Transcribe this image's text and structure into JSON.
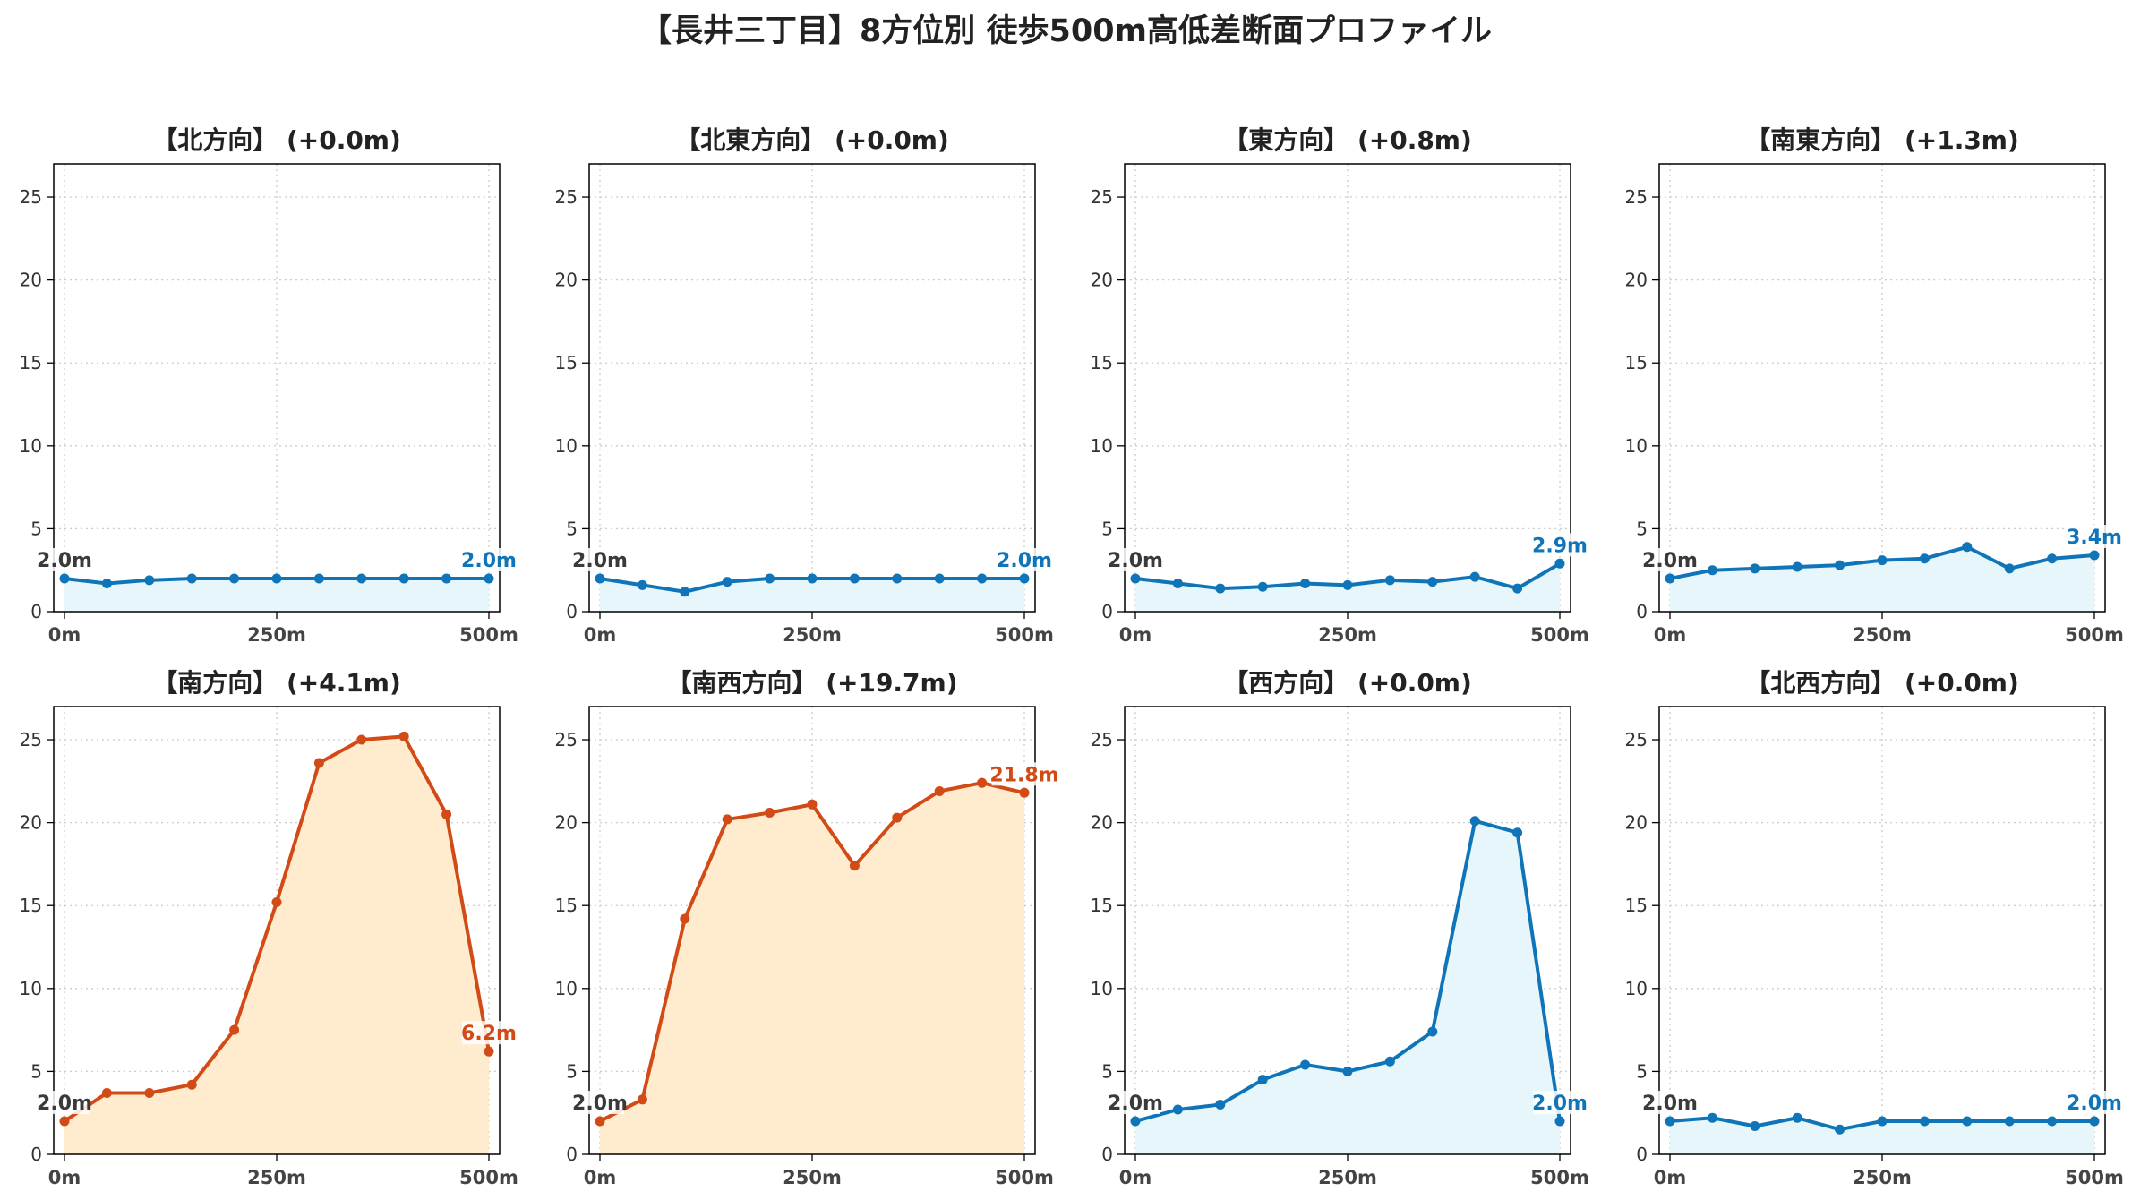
{
  "title": "【長井三丁目】8方位別 徒歩500m高低差断面プロファイル",
  "colors": {
    "low_line": "#0f75b8",
    "low_fill": "#e6f6fb",
    "high_line": "#d24a16",
    "high_fill": "#ffeccf",
    "start_label": "#3a3a3a",
    "grid": "#cccccc"
  },
  "chart_data": [
    {
      "type": "line",
      "title": "【北方向】 (+0.0m)",
      "x": [
        0,
        50,
        100,
        150,
        200,
        250,
        300,
        350,
        400,
        450,
        500
      ],
      "values": [
        2.0,
        1.7,
        1.9,
        2.0,
        2.0,
        2.0,
        2.0,
        2.0,
        2.0,
        2.0,
        2.0
      ],
      "start_label": "2.0m",
      "end_label": "2.0m",
      "highlight": false,
      "ylim": [
        0,
        27
      ],
      "yticks": [
        "0",
        "5",
        "10",
        "15",
        "20",
        "25"
      ],
      "xticks": [
        "0m",
        "250m",
        "500m"
      ],
      "grid": true
    },
    {
      "type": "line",
      "title": "【北東方向】 (+0.0m)",
      "x": [
        0,
        50,
        100,
        150,
        200,
        250,
        300,
        350,
        400,
        450,
        500
      ],
      "values": [
        2.0,
        1.6,
        1.2,
        1.8,
        2.0,
        2.0,
        2.0,
        2.0,
        2.0,
        2.0,
        2.0
      ],
      "start_label": "2.0m",
      "end_label": "2.0m",
      "highlight": false,
      "ylim": [
        0,
        27
      ],
      "yticks": [
        "0",
        "5",
        "10",
        "15",
        "20",
        "25"
      ],
      "xticks": [
        "0m",
        "250m",
        "500m"
      ],
      "grid": true
    },
    {
      "type": "line",
      "title": "【東方向】 (+0.8m)",
      "x": [
        0,
        50,
        100,
        150,
        200,
        250,
        300,
        350,
        400,
        450,
        500
      ],
      "values": [
        2.0,
        1.7,
        1.4,
        1.5,
        1.7,
        1.6,
        1.9,
        1.8,
        2.1,
        1.4,
        2.9
      ],
      "start_label": "2.0m",
      "end_label": "2.9m",
      "highlight": false,
      "ylim": [
        0,
        27
      ],
      "yticks": [
        "0",
        "5",
        "10",
        "15",
        "20",
        "25"
      ],
      "xticks": [
        "0m",
        "250m",
        "500m"
      ],
      "grid": true
    },
    {
      "type": "line",
      "title": "【南東方向】 (+1.3m)",
      "x": [
        0,
        50,
        100,
        150,
        200,
        250,
        300,
        350,
        400,
        450,
        500
      ],
      "values": [
        2.0,
        2.5,
        2.6,
        2.7,
        2.8,
        3.1,
        3.2,
        3.9,
        2.6,
        3.2,
        3.4
      ],
      "start_label": "2.0m",
      "end_label": "3.4m",
      "highlight": false,
      "ylim": [
        0,
        27
      ],
      "yticks": [
        "0",
        "5",
        "10",
        "15",
        "20",
        "25"
      ],
      "xticks": [
        "0m",
        "250m",
        "500m"
      ],
      "grid": true
    },
    {
      "type": "line",
      "title": "【南方向】 (+4.1m)",
      "x": [
        0,
        50,
        100,
        150,
        200,
        250,
        300,
        350,
        400,
        450,
        500
      ],
      "values": [
        2.0,
        3.7,
        3.7,
        4.2,
        7.5,
        15.2,
        23.6,
        25.0,
        25.2,
        20.5,
        6.2
      ],
      "start_label": "2.0m",
      "end_label": "6.2m",
      "highlight": true,
      "ylim": [
        0,
        27
      ],
      "yticks": [
        "0",
        "5",
        "10",
        "15",
        "20",
        "25"
      ],
      "xticks": [
        "0m",
        "250m",
        "500m"
      ],
      "grid": true
    },
    {
      "type": "line",
      "title": "【南西方向】 (+19.7m)",
      "x": [
        0,
        50,
        100,
        150,
        200,
        250,
        300,
        350,
        400,
        450,
        500
      ],
      "values": [
        2.0,
        3.3,
        14.2,
        20.2,
        20.6,
        21.1,
        17.4,
        20.3,
        21.9,
        22.4,
        21.8
      ],
      "start_label": "2.0m",
      "end_label": "21.8m",
      "highlight": true,
      "ylim": [
        0,
        27
      ],
      "yticks": [
        "0",
        "5",
        "10",
        "15",
        "20",
        "25"
      ],
      "xticks": [
        "0m",
        "250m",
        "500m"
      ],
      "grid": true
    },
    {
      "type": "line",
      "title": "【西方向】 (+0.0m)",
      "x": [
        0,
        50,
        100,
        150,
        200,
        250,
        300,
        350,
        400,
        450,
        500
      ],
      "values": [
        2.0,
        2.7,
        3.0,
        4.5,
        5.4,
        5.0,
        5.6,
        7.4,
        20.1,
        19.4,
        2.0
      ],
      "start_label": "2.0m",
      "end_label": "2.0m",
      "highlight": false,
      "ylim": [
        0,
        27
      ],
      "yticks": [
        "0",
        "5",
        "10",
        "15",
        "20",
        "25"
      ],
      "xticks": [
        "0m",
        "250m",
        "500m"
      ],
      "grid": true
    },
    {
      "type": "line",
      "title": "【北西方向】 (+0.0m)",
      "x": [
        0,
        50,
        100,
        150,
        200,
        250,
        300,
        350,
        400,
        450,
        500
      ],
      "values": [
        2.0,
        2.2,
        1.7,
        2.2,
        1.5,
        2.0,
        2.0,
        2.0,
        2.0,
        2.0,
        2.0
      ],
      "start_label": "2.0m",
      "end_label": "2.0m",
      "highlight": false,
      "ylim": [
        0,
        27
      ],
      "yticks": [
        "0",
        "5",
        "10",
        "15",
        "20",
        "25"
      ],
      "xticks": [
        "0m",
        "250m",
        "500m"
      ],
      "grid": true
    }
  ]
}
